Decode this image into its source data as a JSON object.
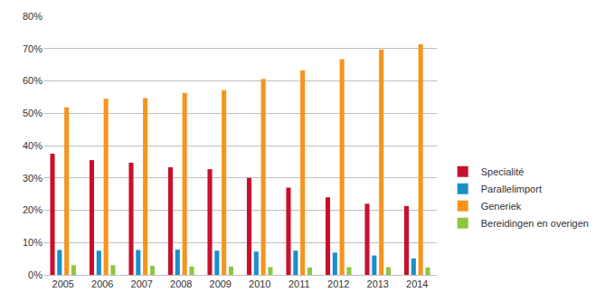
{
  "chart_data": {
    "type": "bar",
    "categories": [
      "2005",
      "2006",
      "2007",
      "2008",
      "2009",
      "2010",
      "2011",
      "2012",
      "2013",
      "2014"
    ],
    "series": [
      {
        "name": "Specialité",
        "color": "#c8102e",
        "values": [
          37.5,
          35.5,
          34.7,
          33.3,
          32.7,
          30.0,
          27.0,
          24.0,
          22.0,
          21.3
        ]
      },
      {
        "name": "Parallelimport",
        "color": "#1b8fc9",
        "values": [
          7.7,
          7.5,
          7.7,
          7.8,
          7.5,
          7.2,
          7.5,
          6.9,
          6.0,
          5.1
        ]
      },
      {
        "name": "Generiek",
        "color": "#f7941d",
        "values": [
          51.8,
          54.5,
          54.7,
          56.3,
          57.1,
          60.6,
          63.3,
          66.7,
          69.7,
          71.3
        ]
      },
      {
        "name": "Bereidingen en overigen",
        "color": "#8dc63f",
        "values": [
          3.0,
          3.0,
          2.8,
          2.6,
          2.6,
          2.4,
          2.3,
          2.4,
          2.4,
          2.3
        ]
      }
    ],
    "ylim": [
      0,
      80
    ],
    "yticks": [
      {
        "value": 0,
        "label": "0%"
      },
      {
        "value": 10,
        "label": "10%"
      },
      {
        "value": 20,
        "label": "20%"
      },
      {
        "value": 30,
        "label": "30%"
      },
      {
        "value": 40,
        "label": "40%"
      },
      {
        "value": 50,
        "label": "50%"
      },
      {
        "value": 60,
        "label": "60%"
      },
      {
        "value": 70,
        "label": "70%"
      },
      {
        "value": 80,
        "label": "80%"
      }
    ],
    "grid": true,
    "legend": "right"
  }
}
